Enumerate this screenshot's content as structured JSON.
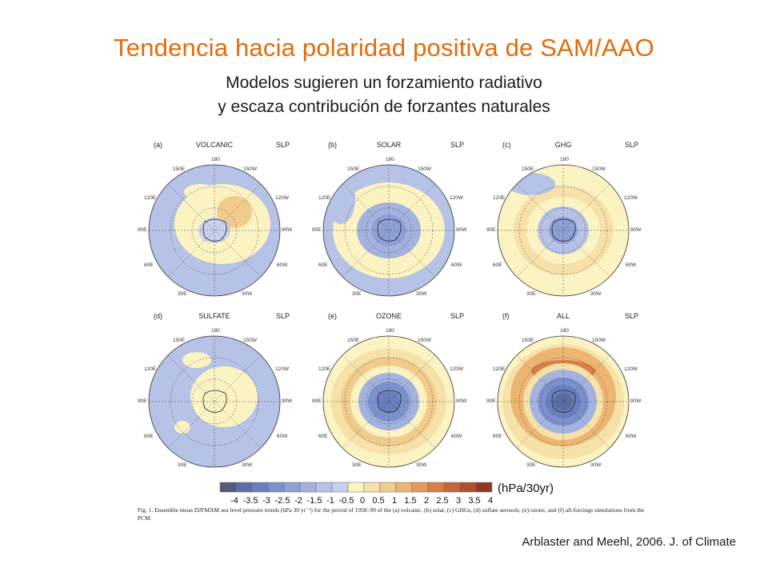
{
  "slide": {
    "title": "Tendencia hacia polaridad positiva de SAM/AAO",
    "subtitle_line1": "Modelos sugieren un forzamiento radiativo",
    "subtitle_line2": "y escaza contribución de  forzantes naturales",
    "citation": "Arblaster and Meehl, 2006. J. of Climate"
  },
  "figure": {
    "panels": [
      {
        "tag": "(a)",
        "name": "VOLCANIC",
        "var": "SLP"
      },
      {
        "tag": "(b)",
        "name": "SOLAR",
        "var": "SLP"
      },
      {
        "tag": "(c)",
        "name": "GHG",
        "var": "SLP"
      },
      {
        "tag": "(d)",
        "name": "SULFATE",
        "var": "SLP"
      },
      {
        "tag": "(e)",
        "name": "OZONE",
        "var": "SLP"
      },
      {
        "tag": "(f)",
        "name": "ALL",
        "var": "SLP"
      }
    ],
    "longitudes": {
      "top": "180",
      "tl": "150E",
      "tr": "150W",
      "ul": "120E",
      "ur": "120W",
      "l": "90E",
      "r": "90W",
      "ll": "60E",
      "lr": "60W",
      "bl": "30E",
      "br": "30W"
    },
    "colorbar": {
      "labels": [
        "-4",
        "-3.5",
        "-3",
        "-2.5",
        "-2",
        "-1.5",
        "-1",
        "-0.5",
        "0",
        "0.5",
        "1",
        "1.5",
        "2",
        "2.5",
        "3",
        "3.5",
        "4"
      ],
      "colors": [
        "#545a78",
        "#5d6da8",
        "#6b7fbf",
        "#7c90cc",
        "#8fa0d6",
        "#a3b2de",
        "#b6c2e6",
        "#c8d2ee",
        "#fbf3c2",
        "#f6e1a8",
        "#f1cc8d",
        "#ecb572",
        "#e49a59",
        "#d97f45",
        "#c96538",
        "#b24d2e",
        "#8f3925"
      ],
      "units": "(hPa/30yr)"
    },
    "caption": "Fig. 1. Ensemble mean DJFMAM sea level pressure trends (hPa 30 yr⁻¹) for the period of 1958–99 of the (a) volcanic, (b) solar, (c) GHGs, (d) sulfate aerosols, (e) ozone, and (f) all-forcings simulations from the PCM."
  }
}
